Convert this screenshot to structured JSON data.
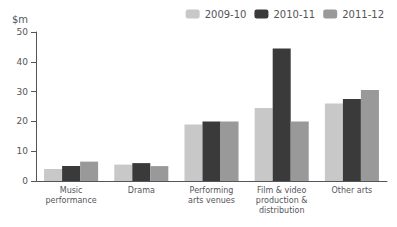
{
  "chart_data": {
    "type": "bar",
    "categories": [
      "Music\nperformance",
      "Drama",
      "Performing\narts venues",
      "Film & video\nproduction &\ndistribution",
      "Other arts"
    ],
    "series": [
      {
        "name": "2009-10",
        "color": "#c8c8c8",
        "values": [
          4.0,
          5.5,
          19.0,
          24.5,
          26.0
        ]
      },
      {
        "name": "2010-11",
        "color": "#3a3a3a",
        "values": [
          5.0,
          6.0,
          20.0,
          44.5,
          27.5
        ]
      },
      {
        "name": "2011-12",
        "color": "#999999",
        "values": [
          6.5,
          5.0,
          20.0,
          20.0,
          30.5
        ]
      }
    ],
    "ylabel": "$m",
    "ylim": [
      0,
      50
    ],
    "yticks": [
      0,
      10,
      20,
      30,
      40,
      50
    ],
    "grid": false,
    "legend": "upper right"
  }
}
